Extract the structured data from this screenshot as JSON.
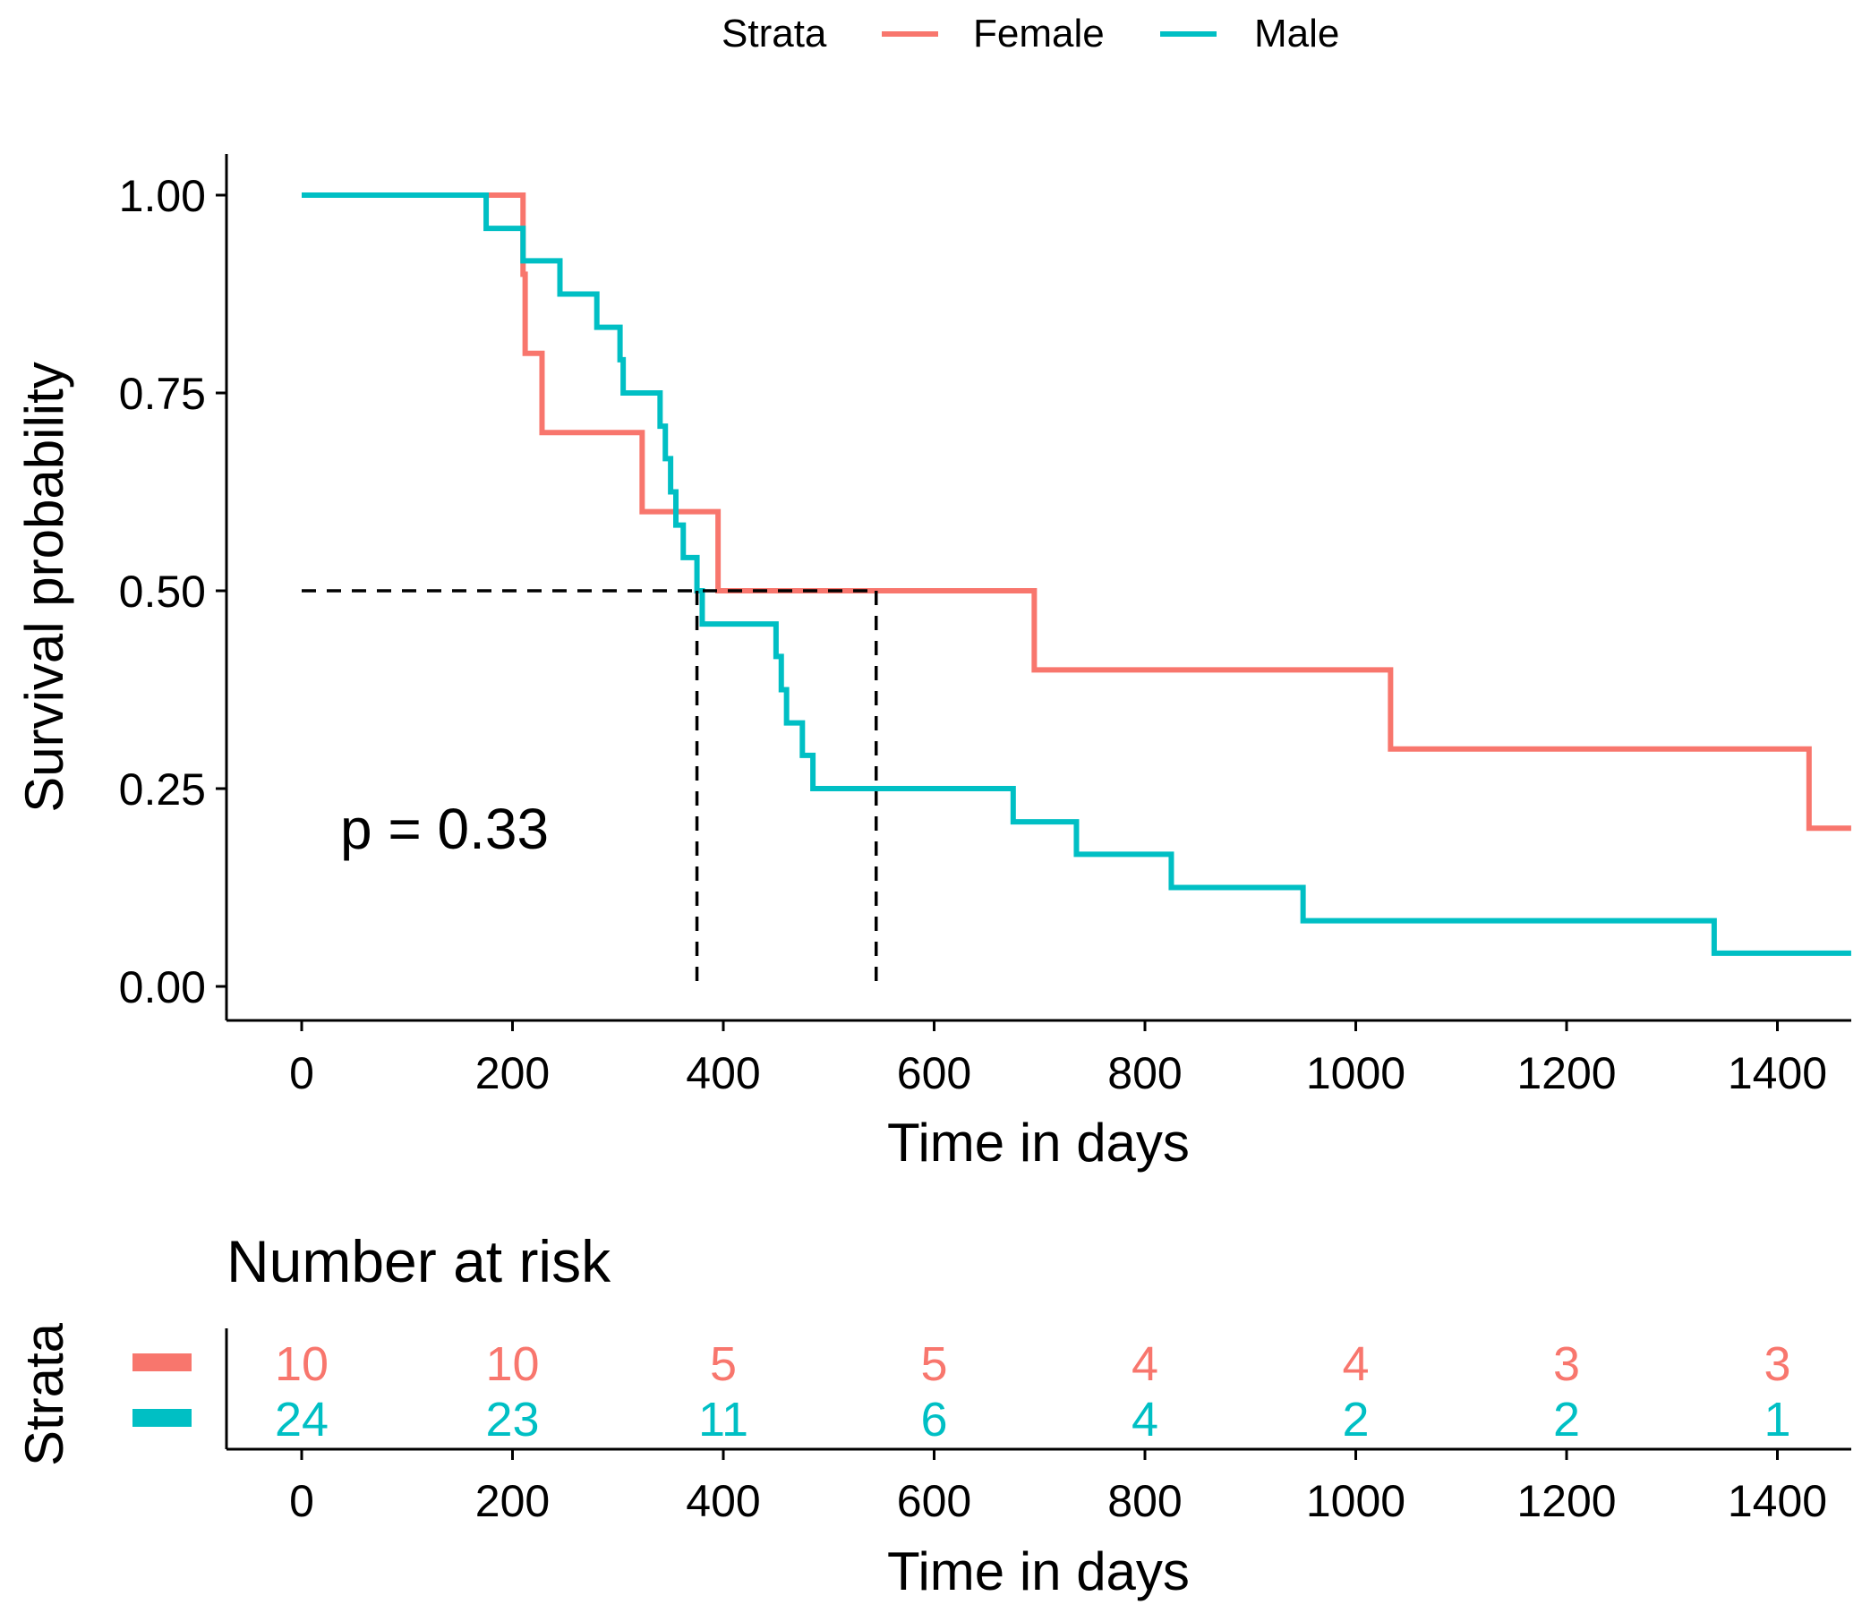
{
  "legend": {
    "title": "Strata",
    "items": [
      {
        "label": "Female",
        "color": "#F8766D"
      },
      {
        "label": "Male",
        "color": "#00BFC4"
      }
    ]
  },
  "chart_data": [
    {
      "type": "line",
      "subtype": "kaplan-meier-step",
      "title": "",
      "xlabel": "Time in days",
      "ylabel": "Survival probability",
      "xlim": [
        -90,
        1470
      ],
      "ylim": [
        -0.05,
        1.05
      ],
      "x_ticks": [
        0,
        200,
        400,
        600,
        800,
        1000,
        1200,
        1400
      ],
      "y_ticks": [
        0.0,
        0.25,
        0.5,
        0.75,
        1.0
      ],
      "y_tick_labels": [
        "0.00",
        "0.25",
        "0.50",
        "0.75",
        "1.00"
      ],
      "legend_position": "top",
      "annotation": "p = 0.33",
      "median_survival": [
        {
          "strata": "Male",
          "x": 375,
          "y": 0.5
        },
        {
          "strata": "Female",
          "x": 545,
          "y": 0.5
        }
      ],
      "series": [
        {
          "name": "Female",
          "color": "#F8766D",
          "steps": [
            [
              0,
              1.0
            ],
            [
              210,
              0.9
            ],
            [
              212,
              0.8
            ],
            [
              228,
              0.7
            ],
            [
              323,
              0.6
            ],
            [
              395,
              0.5
            ],
            [
              695,
              0.4
            ],
            [
              1033,
              0.3
            ],
            [
              1430,
              0.2
            ],
            [
              1470,
              0.2
            ]
          ]
        },
        {
          "name": "Male",
          "color": "#00BFC4",
          "steps": [
            [
              0,
              1.0
            ],
            [
              175,
              0.958
            ],
            [
              210,
              0.917
            ],
            [
              245,
              0.875
            ],
            [
              280,
              0.833
            ],
            [
              302,
              0.792
            ],
            [
              305,
              0.75
            ],
            [
              340,
              0.708
            ],
            [
              345,
              0.667
            ],
            [
              350,
              0.625
            ],
            [
              355,
              0.583
            ],
            [
              362,
              0.542
            ],
            [
              375,
              0.5
            ],
            [
              380,
              0.458
            ],
            [
              450,
              0.417
            ],
            [
              455,
              0.375
            ],
            [
              460,
              0.333
            ],
            [
              475,
              0.292
            ],
            [
              485,
              0.25
            ],
            [
              675,
              0.208
            ],
            [
              735,
              0.167
            ],
            [
              825,
              0.125
            ],
            [
              950,
              0.083
            ],
            [
              1340,
              0.042
            ],
            [
              1470,
              0.042
            ]
          ]
        }
      ]
    },
    {
      "type": "table",
      "title": "Number at risk",
      "xlabel": "Time in days",
      "ylabel": "Strata",
      "x_ticks": [
        0,
        200,
        400,
        600,
        800,
        1000,
        1200,
        1400
      ],
      "rows": [
        {
          "name": "Female",
          "color": "#F8766D",
          "values": [
            10,
            10,
            5,
            5,
            4,
            4,
            3,
            3
          ]
        },
        {
          "name": "Male",
          "color": "#00BFC4",
          "values": [
            24,
            23,
            11,
            6,
            4,
            2,
            2,
            1
          ]
        }
      ]
    }
  ]
}
